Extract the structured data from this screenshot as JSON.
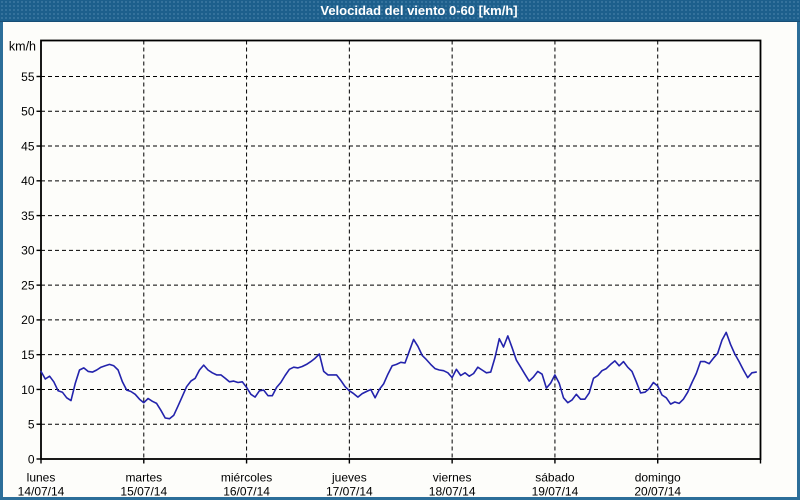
{
  "window": {
    "title": "Velocidad del viento 0-60 [km/h]",
    "colors": {
      "titlebar_bg": "#1D5F8C",
      "titlebar_text": "#FFFFFF",
      "frame_border": "#2C6E99",
      "plot_background": "#FDFDFA",
      "line": "#2323AC",
      "grid": "#000000",
      "axis": "#000000"
    }
  },
  "chart_data": {
    "type": "line",
    "title": "Velocidad del viento 0-60 [km/h]",
    "xlabel": "",
    "ylabel": "km/h",
    "ylim": [
      0,
      60
    ],
    "ytick_step": 5,
    "yticks": [
      0,
      5,
      10,
      15,
      20,
      25,
      30,
      35,
      40,
      45,
      50,
      55
    ],
    "grid": true,
    "grid_style": "dashed",
    "legend": "none",
    "x_days": [
      {
        "name": "lunes",
        "date": "14/07/14"
      },
      {
        "name": "martes",
        "date": "15/07/14"
      },
      {
        "name": "miércoles",
        "date": "16/07/14"
      },
      {
        "name": "jueves",
        "date": "17/07/14"
      },
      {
        "name": "viernes",
        "date": "18/07/14"
      },
      {
        "name": "sábado",
        "date": "19/07/14"
      },
      {
        "name": "domingo",
        "date": "20/07/14"
      }
    ],
    "series": [
      {
        "name": "Velocidad del viento",
        "unit": "km/h",
        "interval_hours": 1,
        "start": "lunes 14/07/14 00:00",
        "values": [
          12.6,
          11.5,
          11.9,
          11.1,
          9.8,
          9.6,
          8.8,
          8.4,
          10.9,
          12.8,
          13.1,
          12.6,
          12.5,
          12.8,
          13.2,
          13.4,
          13.6,
          13.4,
          12.8,
          11.1,
          9.9,
          9.7,
          9.3,
          8.6,
          8.1,
          8.7,
          8.3,
          8.0,
          7.0,
          5.9,
          5.8,
          6.3,
          7.6,
          9.0,
          10.4,
          11.2,
          11.6,
          12.8,
          13.5,
          12.8,
          12.4,
          12.1,
          12.1,
          11.6,
          11.1,
          11.2,
          11.0,
          11.1,
          10.3,
          9.3,
          8.9,
          9.8,
          9.9,
          9.1,
          9.1,
          10.3,
          11.0,
          12.0,
          12.9,
          13.2,
          13.1,
          13.3,
          13.6,
          14.0,
          14.5,
          15.1,
          12.6,
          12.1,
          12.1,
          12.1,
          11.3,
          10.4,
          9.8,
          9.4,
          8.9,
          9.4,
          9.7,
          10.0,
          8.8,
          10.0,
          10.8,
          12.2,
          13.4,
          13.6,
          13.9,
          13.8,
          15.5,
          17.2,
          16.2,
          14.9,
          14.3,
          13.6,
          13.0,
          12.8,
          12.7,
          12.4,
          11.7,
          12.9,
          12.0,
          12.4,
          11.9,
          12.3,
          13.2,
          12.8,
          12.4,
          12.5,
          14.6,
          17.3,
          16.1,
          17.7,
          16.0,
          14.2,
          13.2,
          12.2,
          11.2,
          11.8,
          12.6,
          12.2,
          10.2,
          10.9,
          12.1,
          10.9,
          8.8,
          8.1,
          8.5,
          9.3,
          8.6,
          8.6,
          9.5,
          11.6,
          12.0,
          12.7,
          13.0,
          13.6,
          14.1,
          13.4,
          14.0,
          13.2,
          12.6,
          11.1,
          9.5,
          9.6,
          10.1,
          11.0,
          10.5,
          9.2,
          8.8,
          7.9,
          8.2,
          8.0,
          8.6,
          9.6,
          11.0,
          12.3,
          14.0,
          14.0,
          13.7,
          14.5,
          15.2,
          17.1,
          18.2,
          16.5,
          15.1,
          14.0,
          12.8,
          11.7,
          12.4,
          12.5
        ]
      }
    ]
  }
}
